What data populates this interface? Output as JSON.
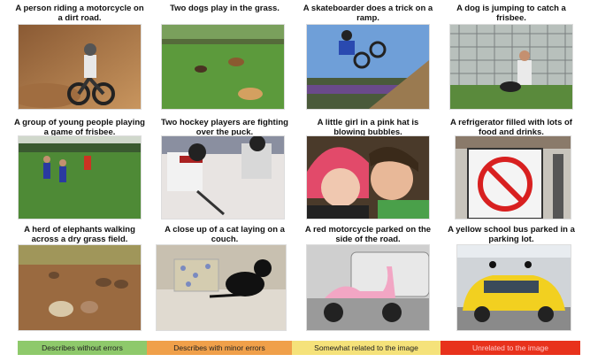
{
  "items": [
    {
      "caption": "A person riding a motorcycle on a dirt road.",
      "category": "green",
      "subject": "motocross-rider"
    },
    {
      "caption": "Two dogs play in the grass.",
      "category": "green",
      "subject": "dogs-on-grass"
    },
    {
      "caption": "A skateboarder does a trick on a ramp.",
      "category": "orange",
      "subject": "bmx-rider"
    },
    {
      "caption": "A dog is jumping to catch a frisbee.",
      "category": "orange",
      "subject": "dog-and-man"
    },
    {
      "caption": "A group of young people playing a game of frisbee.",
      "category": "yellow",
      "subject": "soccer-players"
    },
    {
      "caption": "Two hockey players are fighting over the puck.",
      "category": "green",
      "subject": "hockey-players"
    },
    {
      "caption": "A little girl in a pink hat is blowing bubbles.",
      "category": "yellow",
      "subject": "two-children"
    },
    {
      "caption": "A refrigerator filled with lots of food and drinks.",
      "category": "red",
      "subject": "no-sign"
    },
    {
      "caption": "A herd of elephants walking across a dry grass field.",
      "category": "orange",
      "subject": "elephants"
    },
    {
      "caption": "A close up of a cat laying on a couch.",
      "category": "green",
      "subject": "cat-on-couch"
    },
    {
      "caption": "A red motorcycle parked on the side of the road.",
      "category": "orange",
      "subject": "pink-scooter"
    },
    {
      "caption": "A yellow school bus parked in a parking lot.",
      "category": "yellow",
      "subject": "yellow-car"
    }
  ],
  "legend": [
    {
      "label": "Describes without errors",
      "color": "#8ec96b"
    },
    {
      "label": "Describes with minor errors",
      "color": "#f0a04a"
    },
    {
      "label": "Somewhat related to the image",
      "color": "#f5e27a"
    },
    {
      "label": "Unrelated to the image",
      "color": "#e8321c"
    }
  ]
}
